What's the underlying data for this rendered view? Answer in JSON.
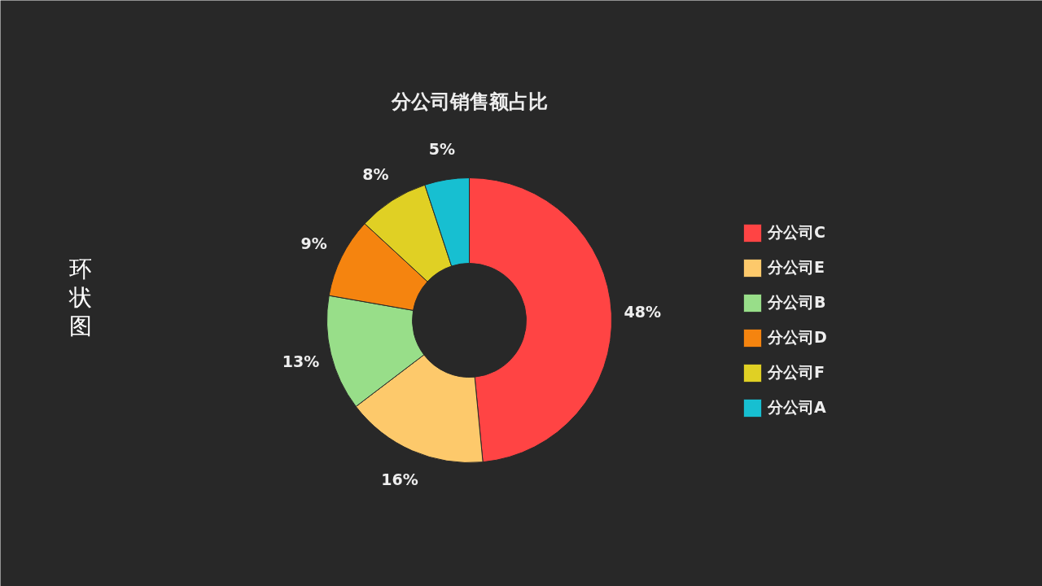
{
  "chart_data": {
    "type": "donut",
    "title": "分公司销售额占比",
    "categories": [
      "分公司C",
      "分公司E",
      "分公司B",
      "分公司D",
      "分公司F",
      "分公司A"
    ],
    "values": [
      48,
      16,
      13,
      9,
      8,
      5
    ],
    "colors": [
      "#ff4444",
      "#fdc96b",
      "#98de89",
      "#f5840f",
      "#e0d024",
      "#17bfd1"
    ],
    "value_labels": [
      "48%",
      "16%",
      "13%",
      "9%",
      "8%",
      "5%"
    ],
    "legend": "right",
    "annotations": [
      "环状图"
    ]
  }
}
